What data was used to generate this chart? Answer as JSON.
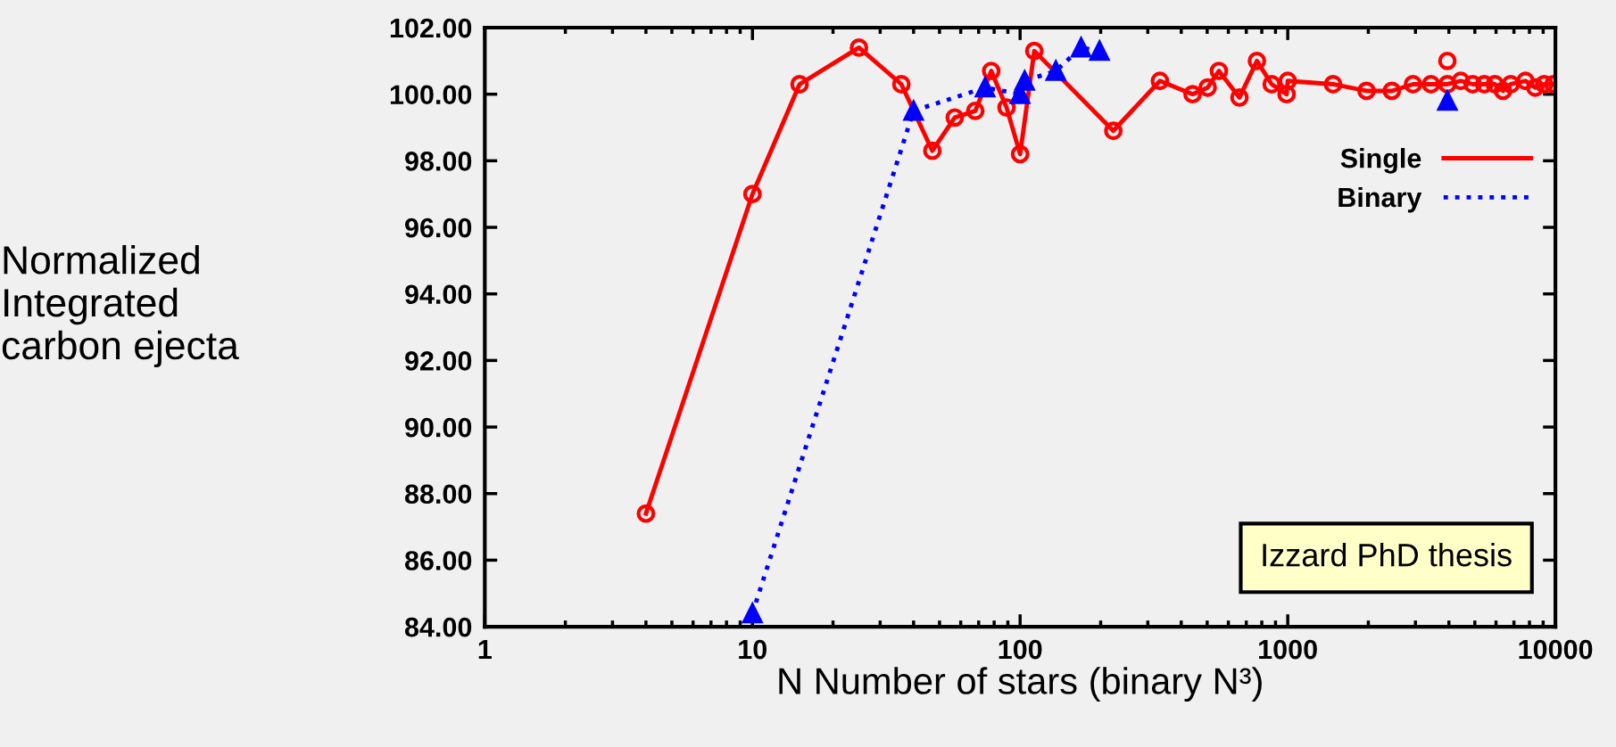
{
  "chart_data": {
    "type": "line",
    "xlabel": "N Number of stars (binary N³)",
    "ylabel": "Normalized\nIntegrated\ncarbon ejecta",
    "log": "x",
    "xlim": [
      1,
      10000
    ],
    "xticks": [
      1,
      10,
      100,
      1000,
      10000
    ],
    "ylim": [
      84,
      102
    ],
    "yticks": [
      {
        "value": 84,
        "label": "84.00"
      },
      {
        "value": 86,
        "label": "86.00"
      },
      {
        "value": 88,
        "label": "88.00"
      },
      {
        "value": 90,
        "label": "90.00"
      },
      {
        "value": 92,
        "label": "92.00"
      },
      {
        "value": 94,
        "label": "94.00"
      },
      {
        "value": 96,
        "label": "96.00"
      },
      {
        "value": 98,
        "label": "98.00"
      },
      {
        "value": 100,
        "label": "100.00"
      },
      {
        "value": 102,
        "label": "102.00"
      }
    ],
    "grid": false,
    "legend": "top right",
    "annotations": [
      "Izzard PhD thesis"
    ],
    "series": [
      {
        "name": "Single",
        "color": "#ff0000",
        "marker": "circle",
        "line_style": "solid",
        "x": [
          4,
          10,
          15,
          25,
          36,
          47,
          57,
          68,
          78,
          89,
          100,
          113,
          223,
          333,
          441,
          502,
          553,
          660,
          767,
          871,
          990,
          1000,
          1477,
          1969,
          2449,
          2937,
          3428,
          3948,
          4430,
          4908,
          5423,
          5940,
          6370,
          6808,
          7730,
          8410,
          9080,
          9840
        ],
        "values": [
          87.4,
          97.0,
          100.3,
          101.4,
          100.3,
          98.3,
          99.3,
          99.5,
          100.7,
          99.6,
          98.2,
          101.3,
          98.9,
          100.4,
          100.0,
          100.2,
          100.7,
          99.9,
          101.0,
          100.3,
          100.0,
          100.4,
          100.3,
          100.1,
          100.1,
          100.3,
          100.3,
          100.3,
          100.4,
          100.3,
          100.3,
          100.3,
          100.1,
          100.3,
          100.4,
          100.2,
          100.3,
          100.3
        ]
      },
      {
        "name": "Binary",
        "color": "#0000ff",
        "marker": "triangle",
        "line_style": "dotted",
        "x": [
          10,
          40,
          74,
          100,
          104,
          136,
          169,
          198
        ],
        "values": [
          84.4,
          99.5,
          100.2,
          100.0,
          100.4,
          100.7,
          101.4,
          101.3
        ]
      },
      {
        "type": "scatter",
        "color": "#ff0000",
        "marker": "circle",
        "x": [
          3948
        ],
        "values": [
          101.0
        ]
      },
      {
        "type": "scatter",
        "color": "#0000ff",
        "marker": "triangle",
        "x": [
          3948
        ],
        "values": [
          99.8
        ]
      }
    ]
  }
}
